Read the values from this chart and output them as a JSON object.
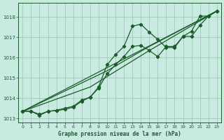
{
  "title": "Graphe pression niveau de la mer (hPa)",
  "bg_color": "#c8eae0",
  "plot_bg_color": "#c8eae0",
  "grid_color": "#9bbfb0",
  "line_color": "#1a5c2a",
  "xlim": [
    -0.5,
    23.5
  ],
  "ylim": [
    1012.8,
    1018.7
  ],
  "yticks": [
    1013,
    1014,
    1015,
    1016,
    1017,
    1018
  ],
  "xticks": [
    0,
    1,
    2,
    3,
    4,
    5,
    6,
    7,
    8,
    9,
    10,
    11,
    12,
    13,
    14,
    15,
    16,
    17,
    18,
    19,
    20,
    21,
    22,
    23
  ],
  "curve1_x": [
    0,
    1,
    2,
    3,
    4,
    5,
    6,
    7,
    8,
    9,
    10,
    11,
    12,
    13,
    14,
    15,
    16,
    17,
    18,
    19,
    20,
    21,
    22,
    23
  ],
  "curve1_y": [
    1013.35,
    1013.35,
    1013.15,
    1013.35,
    1013.38,
    1013.45,
    1013.55,
    1013.85,
    1014.05,
    1014.55,
    1015.65,
    1016.15,
    1016.55,
    1017.55,
    1017.65,
    1017.25,
    1016.9,
    1016.5,
    1016.5,
    1017.05,
    1017.05,
    1017.6,
    1018.05,
    1018.3
  ],
  "curve2_x": [
    0,
    1,
    2,
    3,
    4,
    5,
    6,
    7,
    8,
    9,
    10,
    11,
    12,
    13,
    14,
    15,
    16,
    17,
    18,
    19,
    20,
    21,
    22,
    23
  ],
  "curve2_y": [
    1013.35,
    1013.35,
    1013.2,
    1013.35,
    1013.4,
    1013.5,
    1013.6,
    1013.9,
    1014.05,
    1014.5,
    1015.2,
    1015.65,
    1016.05,
    1016.55,
    1016.6,
    1016.35,
    1016.05,
    1016.55,
    1016.55,
    1017.05,
    1017.3,
    1018.05,
    1018.05,
    1018.3
  ],
  "line1_x": [
    0,
    23
  ],
  "line1_y": [
    1013.35,
    1018.3
  ],
  "line2_x": [
    0,
    10,
    15,
    23
  ],
  "line2_y": [
    1013.35,
    1015.35,
    1016.55,
    1018.3
  ],
  "line3_x": [
    0,
    8,
    15,
    23
  ],
  "line3_y": [
    1013.35,
    1014.55,
    1016.35,
    1018.3
  ]
}
